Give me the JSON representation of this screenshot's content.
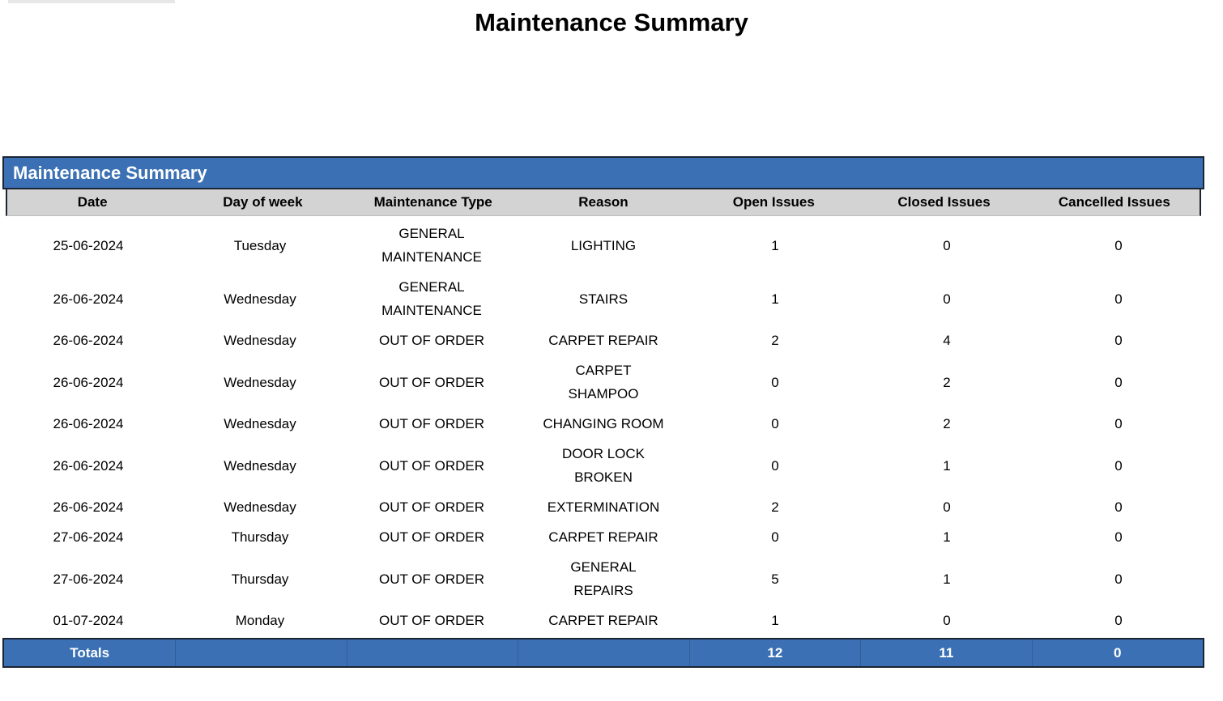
{
  "page": {
    "title": "Maintenance Summary"
  },
  "table": {
    "title": "Maintenance Summary",
    "columns": [
      "Date",
      "Day of week",
      "Maintenance Type",
      "Reason",
      "Open Issues",
      "Closed Issues",
      "Cancelled Issues"
    ],
    "rows": [
      [
        "25-06-2024",
        "Tuesday",
        "GENERAL\nMAINTENANCE",
        "LIGHTING",
        "1",
        "0",
        "0"
      ],
      [
        "26-06-2024",
        "Wednesday",
        "GENERAL\nMAINTENANCE",
        "STAIRS",
        "1",
        "0",
        "0"
      ],
      [
        "26-06-2024",
        "Wednesday",
        "OUT OF ORDER",
        "CARPET REPAIR",
        "2",
        "4",
        "0"
      ],
      [
        "26-06-2024",
        "Wednesday",
        "OUT OF ORDER",
        "CARPET\nSHAMPOO",
        "0",
        "2",
        "0"
      ],
      [
        "26-06-2024",
        "Wednesday",
        "OUT OF ORDER",
        "CHANGING ROOM",
        "0",
        "2",
        "0"
      ],
      [
        "26-06-2024",
        "Wednesday",
        "OUT OF ORDER",
        "DOOR LOCK\nBROKEN",
        "0",
        "1",
        "0"
      ],
      [
        "26-06-2024",
        "Wednesday",
        "OUT OF ORDER",
        "EXTERMINATION",
        "2",
        "0",
        "0"
      ],
      [
        "27-06-2024",
        "Thursday",
        "OUT OF ORDER",
        "CARPET REPAIR",
        "0",
        "1",
        "0"
      ],
      [
        "27-06-2024",
        "Thursday",
        "OUT OF ORDER",
        "GENERAL\nREPAIRS",
        "5",
        "1",
        "0"
      ],
      [
        "01-07-2024",
        "Monday",
        "OUT OF ORDER",
        "CARPET REPAIR",
        "1",
        "0",
        "0"
      ]
    ],
    "totals": {
      "label": "Totals",
      "open_total": "12",
      "closed_total": "11",
      "cancelled_total": "0"
    }
  },
  "colors": {
    "accent_blue": "#3b71b4",
    "header_gray": "#d3d3d3",
    "border_dark": "#1b2433",
    "top_strip_gray": "#e7e7e7",
    "text": "#000000",
    "inverse_text": "#ffffff"
  }
}
